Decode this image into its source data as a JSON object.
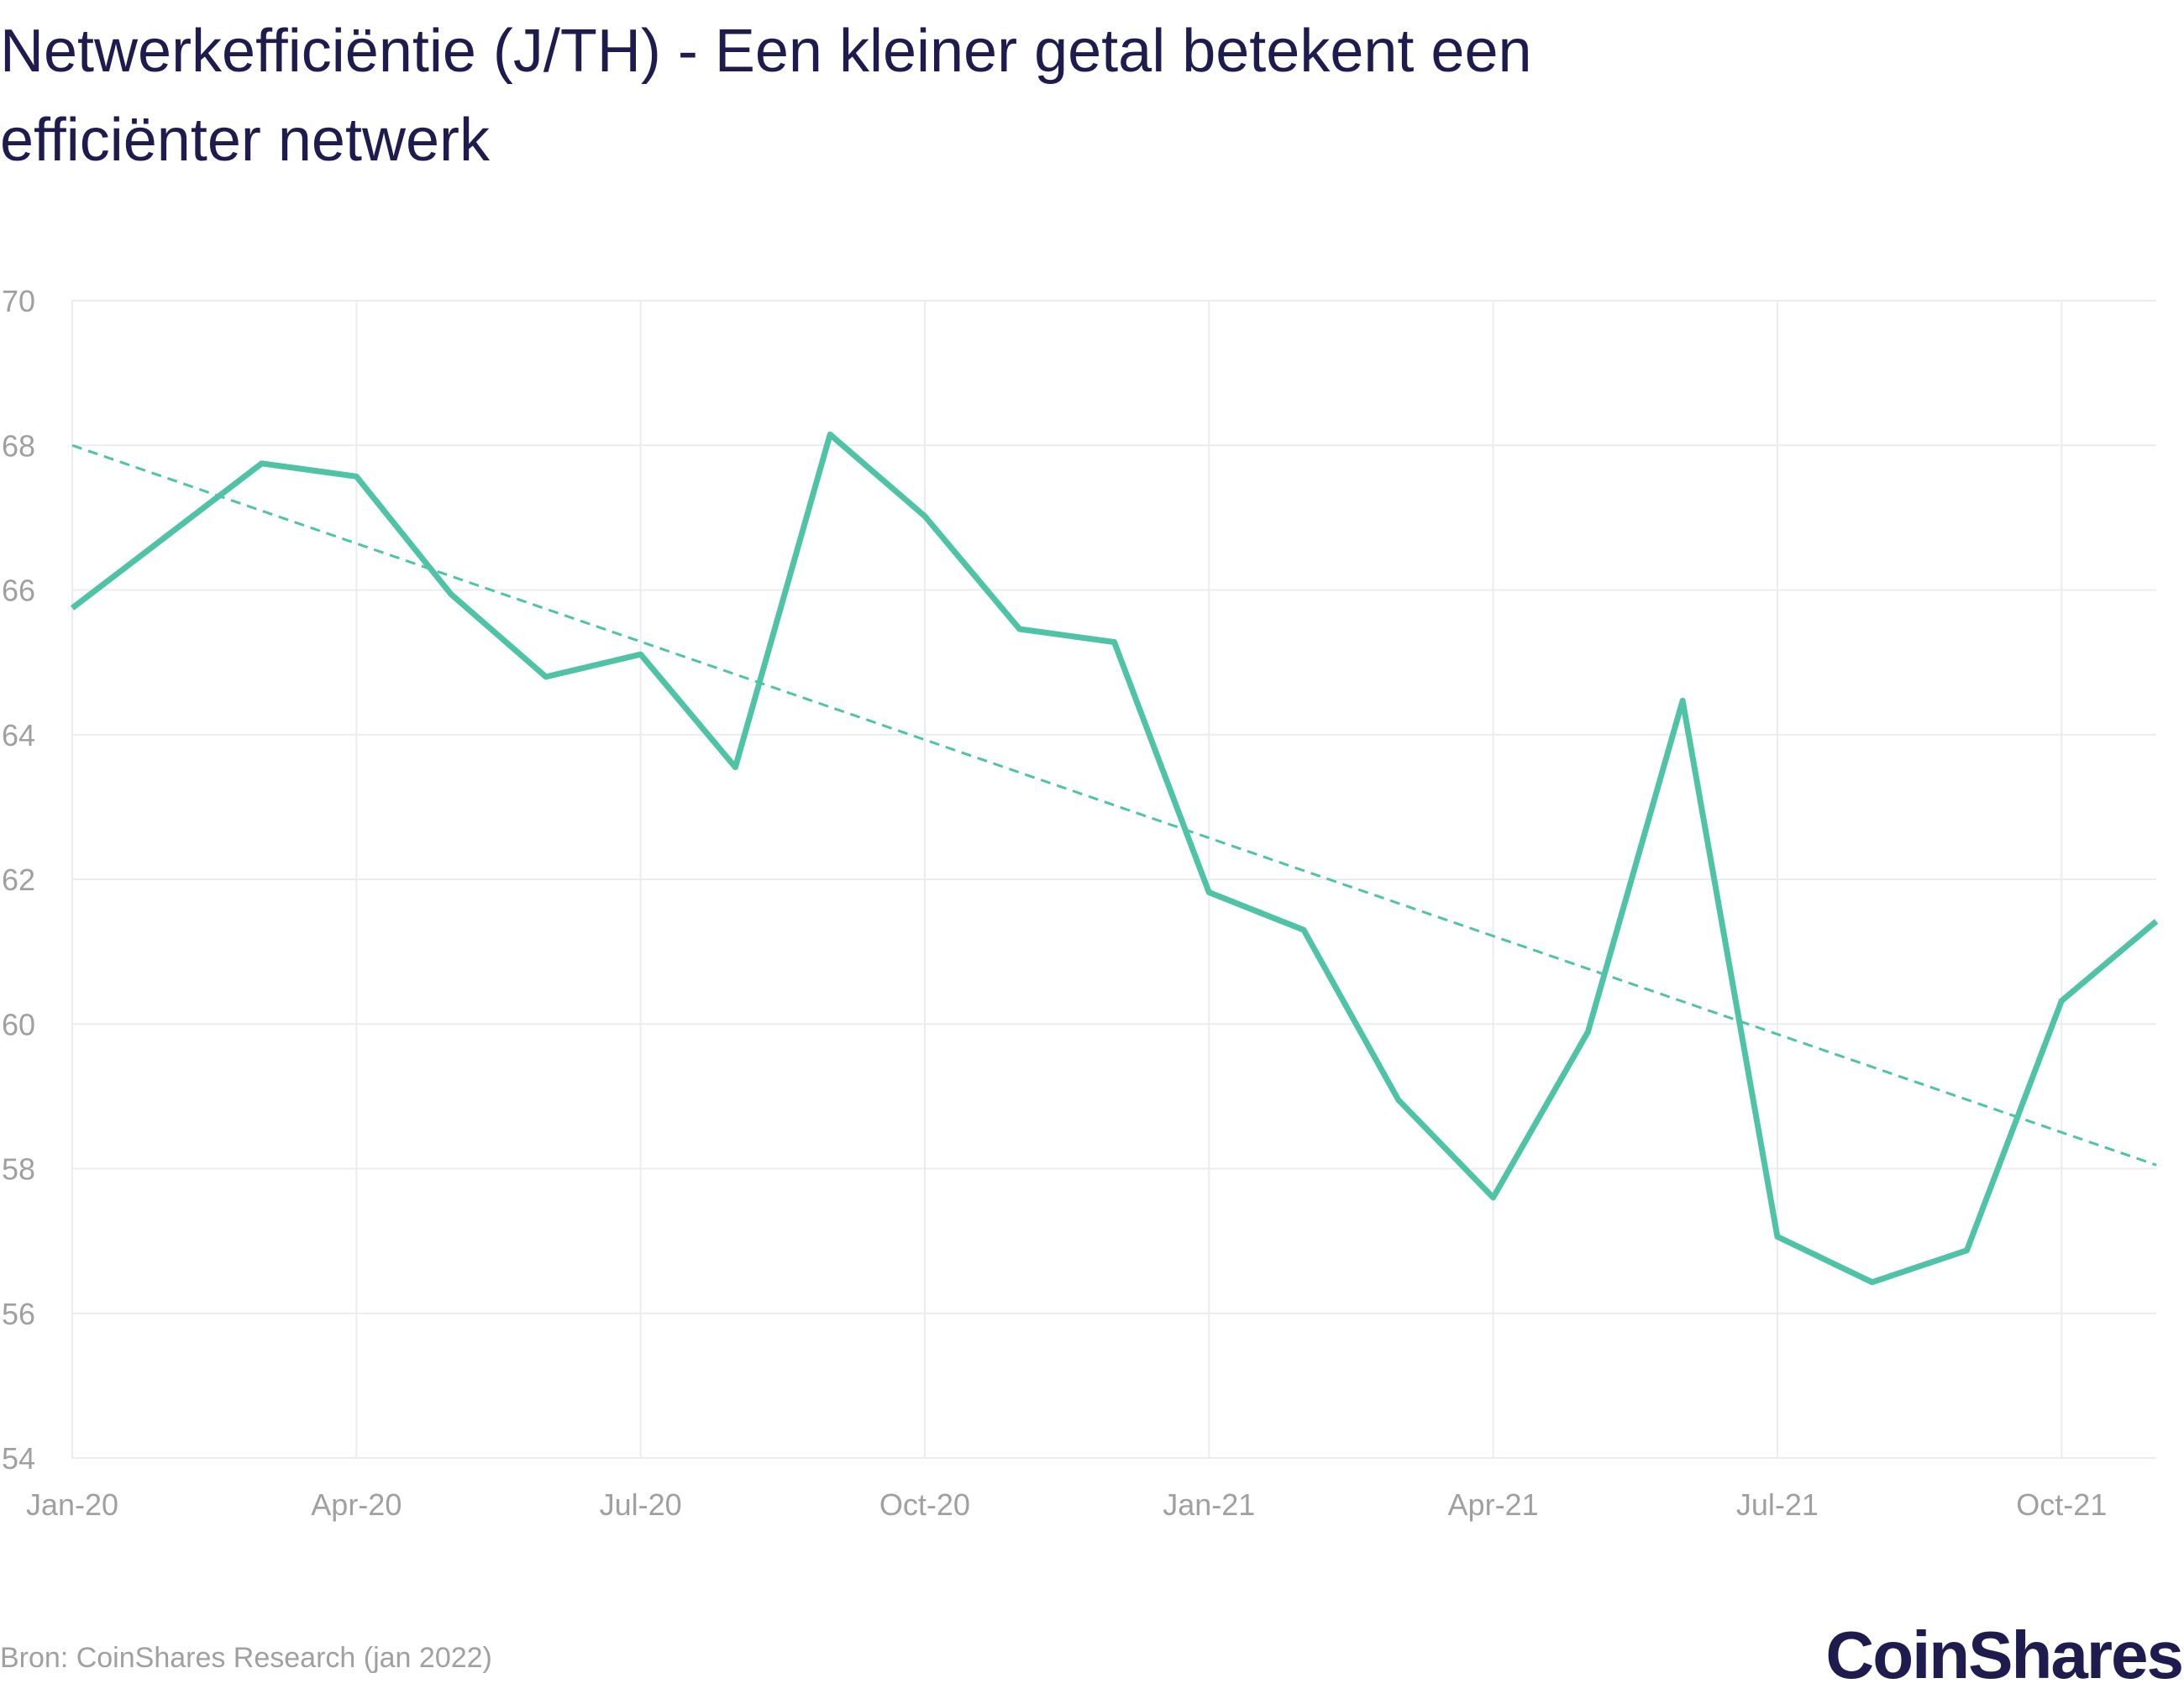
{
  "chart_data": {
    "type": "line",
    "title": "Netwerkefficiëntie (J/TH) - Een kleiner getal betekent een efficiënter netwerk",
    "xlabel": "",
    "ylabel": "",
    "ylim": [
      54,
      70
    ],
    "yticks": [
      "54",
      "56",
      "58",
      "60",
      "62",
      "64",
      "66",
      "68",
      "70"
    ],
    "xtick_labels": [
      "Jan-20",
      "Apr-20",
      "Jul-20",
      "Oct-20",
      "Jan-21",
      "Apr-21",
      "Jul-21",
      "Oct-21"
    ],
    "x": [
      "Jan-20",
      "Feb-20",
      "Mar-20",
      "Apr-20",
      "May-20",
      "Jun-20",
      "Jul-20",
      "Aug-20",
      "Sep-20",
      "Oct-20",
      "Nov-20",
      "Dec-20",
      "Jan-21",
      "Feb-21",
      "Mar-21",
      "Apr-21",
      "May-21",
      "Jun-21",
      "Jul-21",
      "Aug-21",
      "Sep-21",
      "Oct-21",
      "Nov-21"
    ],
    "series": [
      {
        "values": [
          65.75,
          66.75,
          67.75,
          67.57,
          65.94,
          64.8,
          65.11,
          63.55,
          68.15,
          67.02,
          65.46,
          65.28,
          61.82,
          61.3,
          58.95,
          57.6,
          59.89,
          64.47,
          57.06,
          56.43,
          56.87,
          60.32,
          61.42
        ],
        "color": "#4fc3a6",
        "style": "solid"
      },
      {
        "trendline": true,
        "values_start_end": [
          68.0,
          58.05
        ],
        "color": "#4fc3a6",
        "style": "dashed"
      }
    ],
    "grid": true
  },
  "source": "Bron: CoinShares Research (jan 2022)",
  "logo": "CoinShares"
}
